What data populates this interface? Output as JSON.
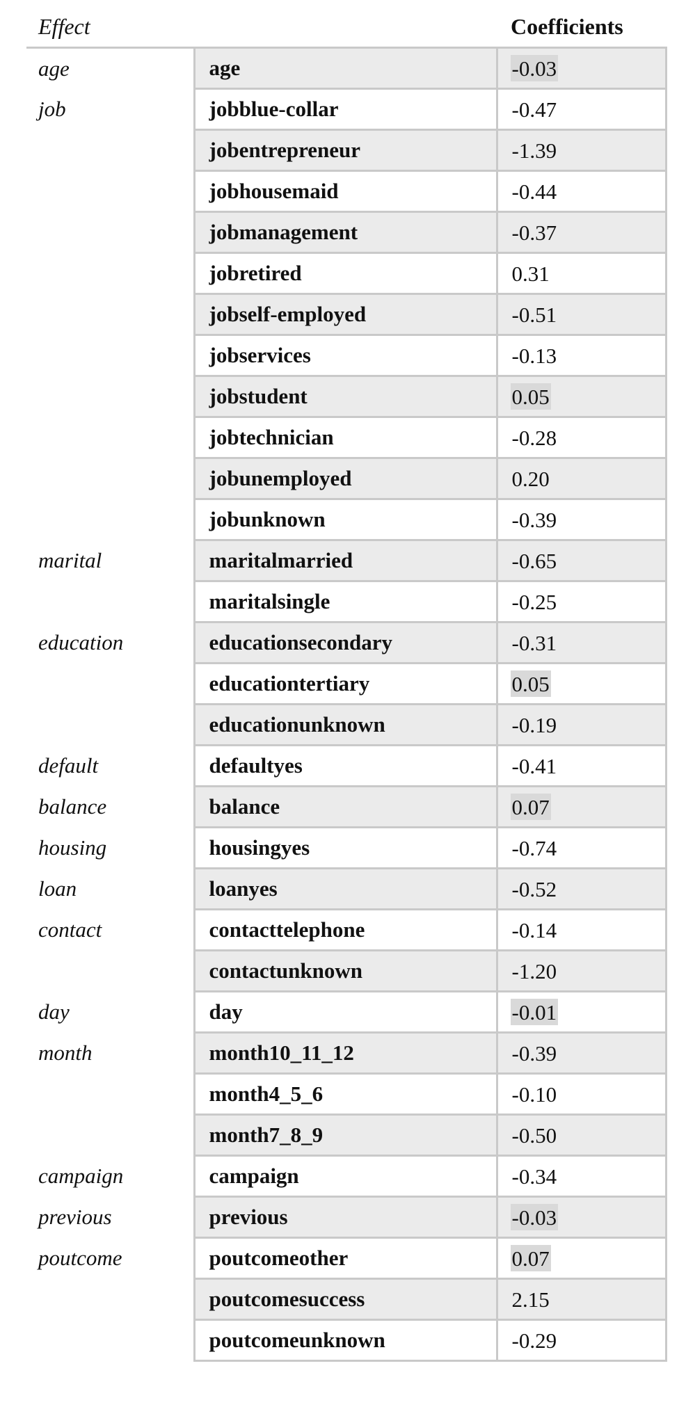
{
  "table": {
    "headers": {
      "effect": "Effect",
      "term": "",
      "coef": "Coefficients"
    },
    "rows": [
      {
        "effect": "age",
        "term": "age",
        "coef": "-0.03",
        "shaded": true,
        "highlight": true
      },
      {
        "effect": "job",
        "term": "jobblue-collar",
        "coef": "-0.47",
        "shaded": false,
        "highlight": false
      },
      {
        "effect": "",
        "term": "jobentrepreneur",
        "coef": "-1.39",
        "shaded": true,
        "highlight": false
      },
      {
        "effect": "",
        "term": "jobhousemaid",
        "coef": "-0.44",
        "shaded": false,
        "highlight": false
      },
      {
        "effect": "",
        "term": "jobmanagement",
        "coef": "-0.37",
        "shaded": true,
        "highlight": false
      },
      {
        "effect": "",
        "term": "jobretired",
        "coef": "0.31",
        "shaded": false,
        "highlight": false
      },
      {
        "effect": "",
        "term": "jobself-employed",
        "coef": "-0.51",
        "shaded": true,
        "highlight": false
      },
      {
        "effect": "",
        "term": "jobservices",
        "coef": "-0.13",
        "shaded": false,
        "highlight": false
      },
      {
        "effect": "",
        "term": "jobstudent",
        "coef": "0.05",
        "shaded": true,
        "highlight": true
      },
      {
        "effect": "",
        "term": "jobtechnician",
        "coef": "-0.28",
        "shaded": false,
        "highlight": false
      },
      {
        "effect": "",
        "term": "jobunemployed",
        "coef": "0.20",
        "shaded": true,
        "highlight": false
      },
      {
        "effect": "",
        "term": "jobunknown",
        "coef": "-0.39",
        "shaded": false,
        "highlight": false
      },
      {
        "effect": "marital",
        "term": "maritalmarried",
        "coef": "-0.65",
        "shaded": true,
        "highlight": false
      },
      {
        "effect": "",
        "term": "maritalsingle",
        "coef": "-0.25",
        "shaded": false,
        "highlight": false
      },
      {
        "effect": "education",
        "term": "educationsecondary",
        "coef": "-0.31",
        "shaded": true,
        "highlight": false
      },
      {
        "effect": "",
        "term": "educationtertiary",
        "coef": "0.05",
        "shaded": false,
        "highlight": true
      },
      {
        "effect": "",
        "term": "educationunknown",
        "coef": "-0.19",
        "shaded": true,
        "highlight": false
      },
      {
        "effect": "default",
        "term": "defaultyes",
        "coef": "-0.41",
        "shaded": false,
        "highlight": false
      },
      {
        "effect": "balance",
        "term": "balance",
        "coef": "0.07",
        "shaded": true,
        "highlight": true
      },
      {
        "effect": "housing",
        "term": "housingyes",
        "coef": "-0.74",
        "shaded": false,
        "highlight": false
      },
      {
        "effect": "loan",
        "term": "loanyes",
        "coef": "-0.52",
        "shaded": true,
        "highlight": false
      },
      {
        "effect": "contact",
        "term": "contacttelephone",
        "coef": "-0.14",
        "shaded": false,
        "highlight": false
      },
      {
        "effect": "",
        "term": "contactunknown",
        "coef": "-1.20",
        "shaded": true,
        "highlight": false
      },
      {
        "effect": "day",
        "term": "day",
        "coef": "-0.01",
        "shaded": false,
        "highlight": true
      },
      {
        "effect": "month",
        "term": "month10_11_12",
        "coef": "-0.39",
        "shaded": true,
        "highlight": false
      },
      {
        "effect": "",
        "term": "month4_5_6",
        "coef": "-0.10",
        "shaded": false,
        "highlight": false
      },
      {
        "effect": "",
        "term": "month7_8_9",
        "coef": "-0.50",
        "shaded": true,
        "highlight": false
      },
      {
        "effect": "campaign",
        "term": "campaign",
        "coef": "-0.34",
        "shaded": false,
        "highlight": false
      },
      {
        "effect": "previous",
        "term": "previous",
        "coef": "-0.03",
        "shaded": true,
        "highlight": true
      },
      {
        "effect": "poutcome",
        "term": "poutcomeother",
        "coef": "0.07",
        "shaded": false,
        "highlight": true
      },
      {
        "effect": "",
        "term": "poutcomesuccess",
        "coef": "2.15",
        "shaded": true,
        "highlight": false
      },
      {
        "effect": "",
        "term": "poutcomeunknown",
        "coef": "-0.29",
        "shaded": false,
        "highlight": false
      }
    ]
  }
}
